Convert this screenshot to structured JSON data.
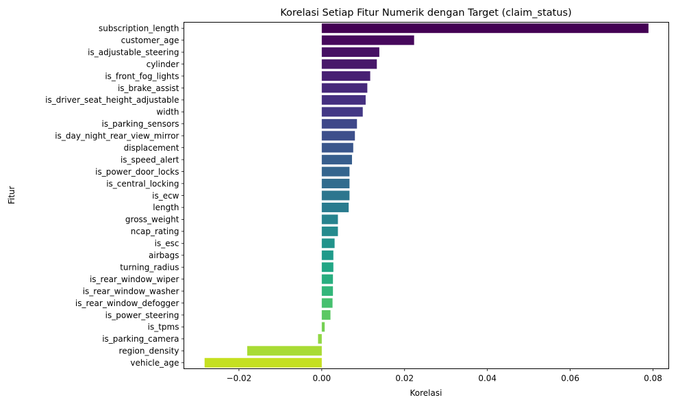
{
  "chart_data": {
    "type": "bar",
    "orientation": "horizontal",
    "title": "Korelasi Setiap Fitur Numerik dengan Target (claim_status)",
    "xlabel": "Korelasi",
    "ylabel": "Fitur",
    "xlim": [
      -0.0333,
      0.0838
    ],
    "xticks": [
      -0.02,
      0.0,
      0.02,
      0.04,
      0.06,
      0.08
    ],
    "xtick_labels": [
      "−0.02",
      "0.00",
      "0.02",
      "0.04",
      "0.06",
      "0.08"
    ],
    "grid": false,
    "colormap": "viridis",
    "categories": [
      "subscription_length",
      "customer_age",
      "is_adjustable_steering",
      "cylinder",
      "is_front_fog_lights",
      "is_brake_assist",
      "is_driver_seat_height_adjustable",
      "width",
      "is_parking_sensors",
      "is_day_night_rear_view_mirror",
      "displacement",
      "is_speed_alert",
      "is_power_door_locks",
      "is_central_locking",
      "is_ecw",
      "length",
      "gross_weight",
      "ncap_rating",
      "is_esc",
      "airbags",
      "turning_radius",
      "is_rear_window_wiper",
      "is_rear_window_washer",
      "is_rear_window_defogger",
      "is_power_steering",
      "is_tpms",
      "is_parking_camera",
      "region_density",
      "vehicle_age"
    ],
    "values": [
      0.0789,
      0.0223,
      0.0139,
      0.0133,
      0.0117,
      0.011,
      0.0106,
      0.0099,
      0.0085,
      0.008,
      0.0076,
      0.0073,
      0.0067,
      0.0067,
      0.0067,
      0.0065,
      0.0039,
      0.0039,
      0.0031,
      0.0028,
      0.0028,
      0.0027,
      0.0027,
      0.0026,
      0.0021,
      0.0007,
      -0.0009,
      -0.018,
      -0.0283
    ],
    "colors": [
      "#440154",
      "#46085c",
      "#471164",
      "#48186a",
      "#472073",
      "#46287a",
      "#453080",
      "#433885",
      "#3f4889",
      "#3d4f8b",
      "#3a568c",
      "#375e8d",
      "#34658e",
      "#316c8e",
      "#2d768e",
      "#297b8e",
      "#27838e",
      "#248a8d",
      "#21938b",
      "#1f9a8a",
      "#21a685",
      "#29ae80",
      "#33b67a",
      "#46c06f",
      "#5cc863",
      "#75d054",
      "#90d743",
      "#a8db34",
      "#c5e021"
    ]
  }
}
